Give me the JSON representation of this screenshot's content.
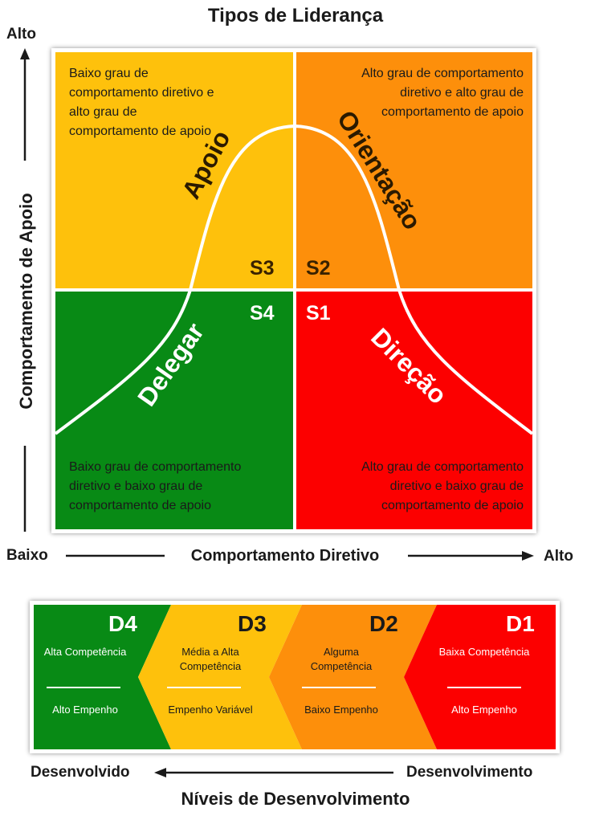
{
  "title": "Tipos de Liderança",
  "axes": {
    "y_high": "Alto",
    "y_label": "Comportamento de Apoio",
    "x_low": "Baixo",
    "x_label": "Comportamento Diretivo",
    "x_high": "Alto"
  },
  "quadrants": {
    "apoio": {
      "description": "Baixo grau de comportamento diretivo e alto grau de comportamento de apoio",
      "style": "Apoio",
      "code": "S3",
      "color": "#fec10c"
    },
    "orientacao": {
      "description": "Alto grau de comportamento diretivo e alto grau de comportamento de apoio",
      "style": "Orientação",
      "code": "S2",
      "color": "#fd8f0b"
    },
    "delegar": {
      "description": "Baixo grau de comportamento diretivo e baixo grau de comportamento de apoio",
      "style": "Delegar",
      "code": "S4",
      "color": "#088a15"
    },
    "direcao": {
      "description": "Alto grau de comportamento diretivo e baixo grau de comportamento de apoio",
      "style": "Direção",
      "code": "S1",
      "color": "#fc0000"
    }
  },
  "development": {
    "levels": [
      {
        "code": "D4",
        "competence": "Alta Competência",
        "commitment": "Alto Empenho",
        "color": "#088a15"
      },
      {
        "code": "D3",
        "competence": "Média a Alta Competência",
        "commitment": "Empenho Variável",
        "color": "#fec10c"
      },
      {
        "code": "D2",
        "competence": "Alguma Competência",
        "commitment": "Baixo Empenho",
        "color": "#fd8f0b"
      },
      {
        "code": "D1",
        "competence": "Baixa Competência",
        "commitment": "Alto Empenho",
        "color": "#fc0000"
      }
    ],
    "left_label": "Desenvolvido",
    "right_label": "Desenvolvimento",
    "title": "Níveis de Desenvolvimento"
  }
}
